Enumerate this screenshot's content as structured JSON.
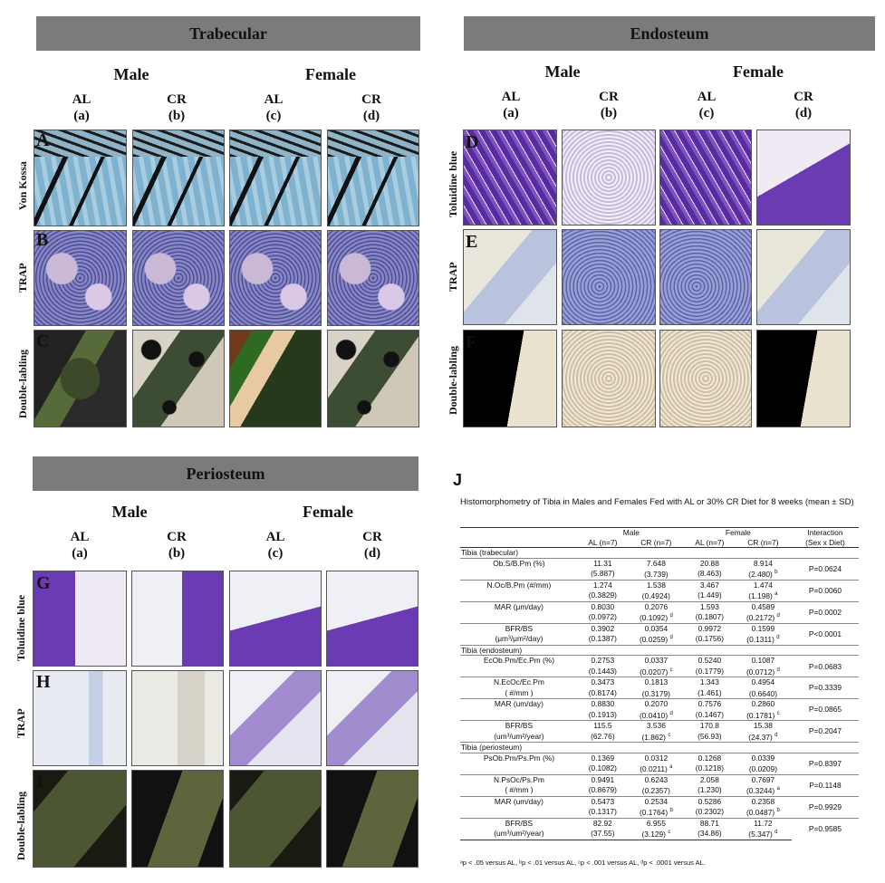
{
  "panels": {
    "trabecular": {
      "title": "Trabecular"
    },
    "endosteum": {
      "title": "Endosteum"
    },
    "periosteum": {
      "title": "Periosteum"
    }
  },
  "sex": {
    "male": "Male",
    "female": "Female"
  },
  "groups": [
    {
      "diet": "AL",
      "code": "(a)"
    },
    {
      "diet": "CR",
      "code": "(b)"
    },
    {
      "diet": "AL",
      "code": "(c)"
    },
    {
      "diet": "CR",
      "code": "(d)"
    }
  ],
  "row_labels": {
    "von_kossa": "Von Kossa",
    "trap": "TRAP",
    "double": "Double-labling",
    "toluidine": "Toluidine blue"
  },
  "letters": {
    "A": "A",
    "B": "B",
    "C": "C",
    "D": "D",
    "E": "E",
    "F": "F",
    "G": "G",
    "H": "H",
    "I": "I"
  },
  "j": {
    "label": "J",
    "caption": "Histomorphometry of Tibia in Males and Females Fed with AL or 30% CR Diet for 8 weeks (mean ± SD)",
    "head": {
      "male": "Male",
      "female": "Female",
      "interaction": "Interaction",
      "al": "AL (n=7)",
      "cr": "CR (n=7)",
      "sxd": "(Sex x Diet)"
    },
    "sections": [
      {
        "title": "Tibia (trabecular)",
        "rows": [
          {
            "p1": "Ob.S/B.Pm (%)",
            "p2": "",
            "m_al": "11.31",
            "m_al_sd": "(5.887)",
            "m_cr": "7.648",
            "m_cr_sd": "(3.739)",
            "f_al": "20.88",
            "f_al_sd": "(8.463)",
            "f_cr": "8.914",
            "f_cr_sd": "(2.480)",
            "f_cr_sup": "b",
            "m_cr_sup": "",
            "p": "P=0.0624"
          },
          {
            "p1": "N.Oc/B.Pm (#/mm)",
            "p2": "",
            "m_al": "1.274",
            "m_al_sd": "(0.3829)",
            "m_cr": "1.538",
            "m_cr_sd": "(0.4924)",
            "f_al": "3.467",
            "f_al_sd": "(1.449)",
            "f_cr": "1.474",
            "f_cr_sd": "(1.198)",
            "f_cr_sup": "a",
            "m_cr_sup": "",
            "p": "P=0.0060"
          },
          {
            "p1": "MAR (μm/day)",
            "p2": "",
            "m_al": "0.8030",
            "m_al_sd": "(0.0972)",
            "m_cr": "0.2076",
            "m_cr_sd": "(0.1092)",
            "f_al": "1.593",
            "f_al_sd": "(0.1807)",
            "f_cr": "0.4589",
            "f_cr_sd": "(0.2172)",
            "f_cr_sup": "d",
            "m_cr_sup": "d",
            "p": "P=0.0002"
          },
          {
            "p1": "BFR/BS",
            "p2": "(μm³/μm²/day)",
            "m_al": "0.3902",
            "m_al_sd": "(0.1387)",
            "m_cr": "0.0354",
            "m_cr_sd": "(0.0259)",
            "f_al": "0.9972",
            "f_al_sd": "(0.1756)",
            "f_cr": "0.1599",
            "f_cr_sd": "(0.1311)",
            "f_cr_sup": "d",
            "m_cr_sup": "d",
            "p": "P<0.0001"
          }
        ]
      },
      {
        "title": "Tibia (endosteum)",
        "rows": [
          {
            "p1": "EcOb.Pm/Ec.Pm (%)",
            "p2": "",
            "m_al": "0.2753",
            "m_al_sd": "(0.1443)",
            "m_cr": "0.0337",
            "m_cr_sd": "(0.0207)",
            "f_al": "0.5240",
            "f_al_sd": "(0.1779)",
            "f_cr": "0.1087",
            "f_cr_sd": "(0.0712)",
            "f_cr_sup": "d",
            "m_cr_sup": "c",
            "p": "P=0.0683"
          },
          {
            "p1": "N.EcOc/Ec.Pm",
            "p2": "( #/mm )",
            "m_al": "0.3473",
            "m_al_sd": "(0.8174)",
            "m_cr": "0.1813",
            "m_cr_sd": "(0.3179)",
            "f_al": "1.343",
            "f_al_sd": "(1.461)",
            "f_cr": "0.4954",
            "f_cr_sd": "(0.6640)",
            "f_cr_sup": "",
            "m_cr_sup": "",
            "p": "P=0.3339"
          },
          {
            "p1": "MAR (um/day)",
            "p2": "",
            "m_al": "0.8830",
            "m_al_sd": "(0.1913)",
            "m_cr": "0.2070",
            "m_cr_sd": "(0.0410)",
            "f_al": "0.7576",
            "f_al_sd": "(0.1467)",
            "f_cr": "0.2860",
            "f_cr_sd": "(0.1781)",
            "f_cr_sup": "c",
            "m_cr_sup": "d",
            "p": "P=0.0865"
          },
          {
            "p1": "BFR/BS",
            "p2": "(um³/um²/year)",
            "m_al": "115.5",
            "m_al_sd": "(62.76)",
            "m_cr": "3.536",
            "m_cr_sd": "(1.862)",
            "f_al": "170.8",
            "f_al_sd": "(56.93)",
            "f_cr": "15.38",
            "f_cr_sd": "(24.37)",
            "f_cr_sup": "d",
            "m_cr_sup": "c",
            "p": "P=0.2047"
          }
        ]
      },
      {
        "title": "Tibia (periosteum)",
        "rows": [
          {
            "p1": "PsOb.Pm/Ps.Pm (%)",
            "p2": "",
            "m_al": "0.1369",
            "m_al_sd": "(0.1082)",
            "m_cr": "0.0312",
            "m_cr_sd": "(0.0211)",
            "f_al": "0.1268",
            "f_al_sd": "(0.1218)",
            "f_cr": "0.0339",
            "f_cr_sd": "(0.0209)",
            "f_cr_sup": "",
            "m_cr_sup": "a",
            "p": "P=0.8397"
          },
          {
            "p1": "N.PsOc/Ps.Pm",
            "p2": "( #/mm )",
            "m_al": "0.9491",
            "m_al_sd": "(0.8679)",
            "m_cr": "0.6243",
            "m_cr_sd": "(0.2357)",
            "f_al": "2.058",
            "f_al_sd": "(1.230)",
            "f_cr": "0.7697",
            "f_cr_sd": "(0.3244)",
            "f_cr_sup": "a",
            "m_cr_sup": "",
            "p": "P=0.1148"
          },
          {
            "p1": "MAR (um/day)",
            "p2": "",
            "m_al": "0.5473",
            "m_al_sd": "(0.1317)",
            "m_cr": "0.2534",
            "m_cr_sd": "(0.1764)",
            "f_al": "0.5286",
            "f_al_sd": "(0.2302)",
            "f_cr": "0.2358",
            "f_cr_sd": "(0.0487)",
            "f_cr_sup": "b",
            "m_cr_sup": "b",
            "p": "P=0.9929"
          },
          {
            "p1": "BFR/BS",
            "p2": "(um³/um²/year)",
            "m_al": "82.92",
            "m_al_sd": "(37.55)",
            "m_cr": "6.955",
            "m_cr_sd": "(3.129)",
            "f_al": "88.71",
            "f_al_sd": "(34.86)",
            "f_cr": "11.72",
            "f_cr_sd": "(5.347)",
            "f_cr_sup": "d",
            "m_cr_sup": "c",
            "p": "P=0.9585"
          }
        ]
      }
    ],
    "footnote": "ᵃp < .05 versus AL, ᵇp < .01 versus AL, ᶜp < .001 versus AL, ᵈp < .0001 versus AL."
  }
}
